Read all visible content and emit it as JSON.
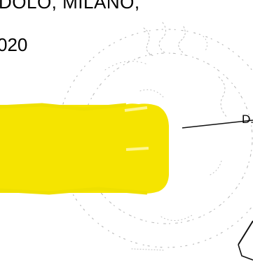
{
  "document": {
    "header_line_partial": "DOLO, MILANO,",
    "year_partial": "020",
    "initial_partial": "D.",
    "stamp_visible": true,
    "redaction": {
      "present": true,
      "color": "#f5e400"
    }
  }
}
